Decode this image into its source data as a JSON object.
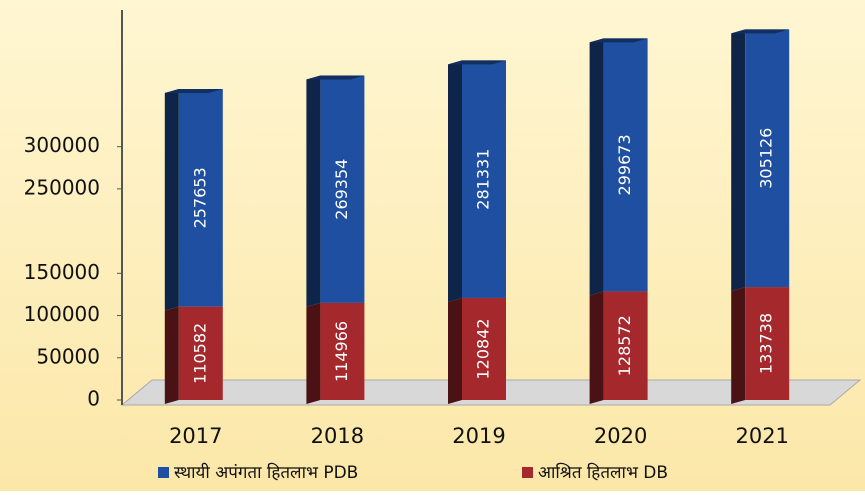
{
  "chart_data": {
    "type": "bar",
    "stacked": true,
    "categories": [
      "2017",
      "2018",
      "2019",
      "2020",
      "2021"
    ],
    "series": [
      {
        "name": "स्थायी अपंगता हितलाभ PDB",
        "color": "#1f4fa0",
        "values": [
          257653,
          269354,
          281331,
          299673,
          305126
        ]
      },
      {
        "name": "आश्रित हितलाभ DB",
        "color": "#a5282d",
        "values": [
          110582,
          114966,
          120842,
          128572,
          133738
        ]
      }
    ],
    "ylim": [
      0,
      450000
    ],
    "yticks": [
      0,
      50000,
      100000,
      150000,
      250000,
      300000
    ],
    "legend": "bottom"
  }
}
